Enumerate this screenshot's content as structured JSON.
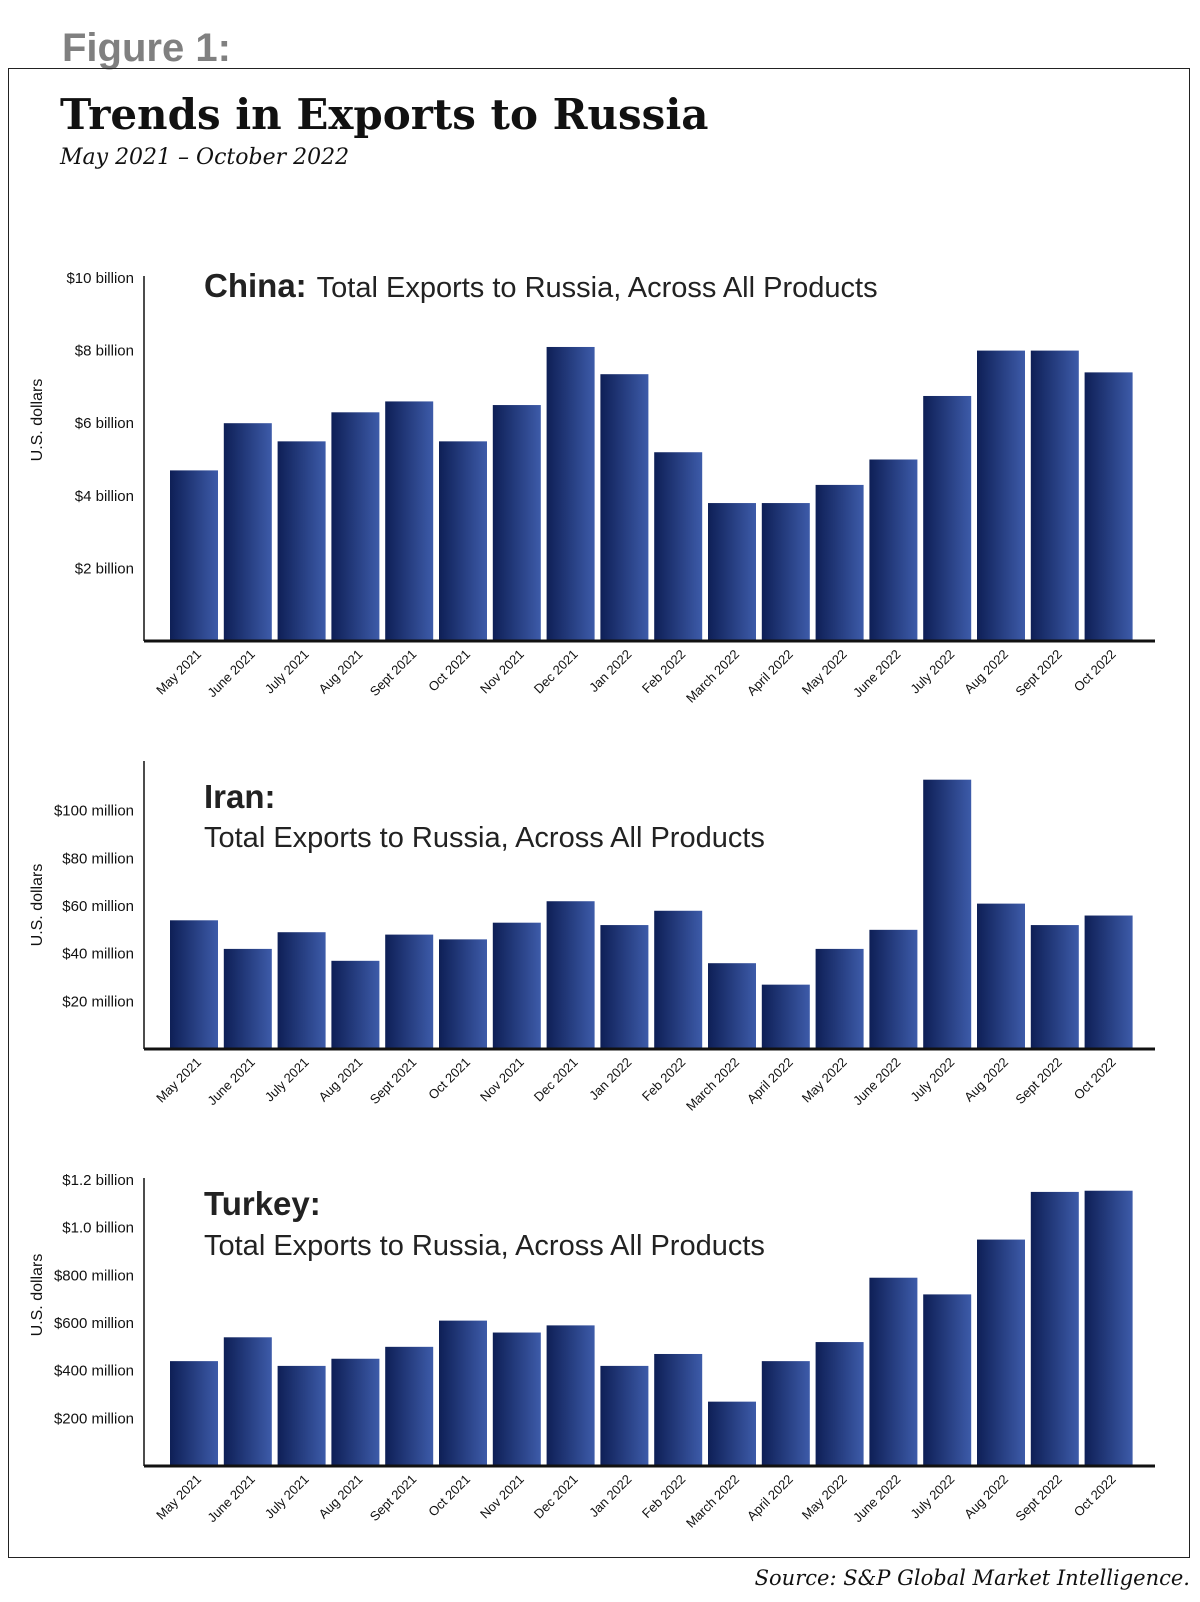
{
  "figure_label": "Figure 1:",
  "title": "Trends in Exports to Russia",
  "subtitle": "May 2021 – October 2022",
  "source": "Source: S&P Global Market Intelligence.",
  "colors": {
    "bar_dark": "#0e1f56",
    "bar_light": "#3d5ba9",
    "axis": "#111111"
  },
  "chart_data": [
    {
      "type": "bar",
      "name": "China:",
      "desc_lines": [
        "Total Exports to Russia, Across All Products"
      ],
      "ylabel": "U.S. dollars",
      "ylim": [
        0,
        10
      ],
      "yunit": "billion USD",
      "yticks": [
        {
          "value": 2,
          "label": "$2 billion"
        },
        {
          "value": 4,
          "label": "$4 billion"
        },
        {
          "value": 6,
          "label": "$6 billion"
        },
        {
          "value": 8,
          "label": "$8 billion"
        },
        {
          "value": 10,
          "label": "$10 billion"
        }
      ],
      "categories": [
        "May 2021",
        "June 2021",
        "July 2021",
        "Aug 2021",
        "Sept 2021",
        "Oct 2021",
        "Nov 2021",
        "Dec 2021",
        "Jan 2022",
        "Feb 2022",
        "March 2022",
        "April 2022",
        "May 2022",
        "June 2022",
        "July 2022",
        "Aug 2022",
        "Sept 2022",
        "Oct 2022"
      ],
      "values": [
        4.7,
        6.0,
        5.5,
        6.3,
        6.6,
        5.5,
        6.5,
        8.1,
        7.35,
        5.2,
        3.8,
        3.8,
        4.3,
        5.0,
        6.75,
        8.0,
        8.0,
        7.4
      ]
    },
    {
      "type": "bar",
      "name": "Iran:",
      "desc_lines": [
        "Total Exports to Russia, Across All Products"
      ],
      "ylabel": "U.S. dollars",
      "ylim": [
        0,
        120
      ],
      "yunit": "million USD",
      "yticks": [
        {
          "value": 20,
          "label": "$20 million"
        },
        {
          "value": 40,
          "label": "$40 million"
        },
        {
          "value": 60,
          "label": "$60 million"
        },
        {
          "value": 80,
          "label": "$80 million"
        },
        {
          "value": 100,
          "label": "$100 million"
        }
      ],
      "categories": [
        "May 2021",
        "June 2021",
        "July 2021",
        "Aug 2021",
        "Sept 2021",
        "Oct 2021",
        "Nov 2021",
        "Dec 2021",
        "Jan 2022",
        "Feb 2022",
        "March 2022",
        "April 2022",
        "May 2022",
        "June 2022",
        "July 2022",
        "Aug 2022",
        "Sept 2022",
        "Oct 2022"
      ],
      "values": [
        54,
        42,
        49,
        37,
        48,
        46,
        53,
        62,
        52,
        58,
        36,
        27,
        42,
        50,
        113,
        61,
        52,
        56
      ]
    },
    {
      "type": "bar",
      "name": "Turkey:",
      "desc_lines": [
        "Total Exports to Russia, Across All Products"
      ],
      "ylabel": "U.S. dollars",
      "ylim": [
        0,
        1200
      ],
      "yunit": "million USD",
      "yticks": [
        {
          "value": 200,
          "label": "$200 million"
        },
        {
          "value": 400,
          "label": "$400 million"
        },
        {
          "value": 600,
          "label": "$600 million"
        },
        {
          "value": 800,
          "label": "$800 million"
        },
        {
          "value": 1000,
          "label": "$1.0 billion"
        },
        {
          "value": 1200,
          "label": "$1.2 billion"
        }
      ],
      "categories": [
        "May 2021",
        "June 2021",
        "July 2021",
        "Aug 2021",
        "Sept 2021",
        "Oct 2021",
        "Nov 2021",
        "Dec 2021",
        "Jan 2022",
        "Feb 2022",
        "March 2022",
        "April 2022",
        "May 2022",
        "June 2022",
        "July 2022",
        "Aug 2022",
        "Sept 2022",
        "Oct 2022"
      ],
      "values": [
        440,
        540,
        420,
        450,
        500,
        610,
        560,
        590,
        420,
        470,
        270,
        440,
        520,
        790,
        720,
        950,
        1150,
        1155
      ]
    }
  ]
}
